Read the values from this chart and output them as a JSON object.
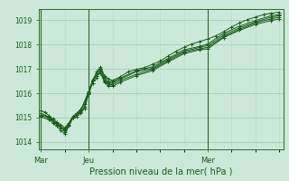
{
  "bg_color": "#cce8d8",
  "grid_color_major": "#a0c8b0",
  "grid_color_minor": "#b8d8c8",
  "line_color": "#1a5c1a",
  "marker_color": "#1a5c1a",
  "ylabel_ticks": [
    1014,
    1015,
    1016,
    1017,
    1018,
    1019
  ],
  "xtick_labels": [
    "Mar",
    "Jeu",
    "Mer"
  ],
  "xtick_positions": [
    0,
    48,
    168
  ],
  "xlabel": "Pression niveau de la mer( hPa )",
  "xlim": [
    -2,
    244
  ],
  "ylim": [
    1013.7,
    1019.45
  ],
  "series": [
    [
      0,
      1015.28,
      4,
      1015.22,
      8,
      1015.08,
      12,
      1014.95,
      16,
      1014.82,
      20,
      1014.7,
      24,
      1014.58,
      28,
      1014.78,
      32,
      1015.05,
      36,
      1015.18,
      40,
      1015.32,
      44,
      1015.55,
      48,
      1016.02,
      52,
      1016.42,
      56,
      1016.88,
      60,
      1017.08,
      64,
      1016.72,
      68,
      1016.58,
      72,
      1016.52,
      80,
      1016.68,
      88,
      1016.88,
      96,
      1016.98,
      104,
      1017.05,
      112,
      1017.18,
      120,
      1017.32,
      128,
      1017.52,
      136,
      1017.72,
      144,
      1017.88,
      152,
      1018.02,
      160,
      1018.12,
      168,
      1018.22,
      176,
      1018.35,
      184,
      1018.52,
      192,
      1018.72,
      200,
      1018.88,
      208,
      1019.02,
      216,
      1019.12,
      224,
      1019.22,
      232,
      1019.28,
      240,
      1019.32
    ],
    [
      0,
      1015.18,
      8,
      1015.02,
      16,
      1014.72,
      24,
      1014.52,
      32,
      1014.98,
      40,
      1015.32,
      48,
      1015.98,
      52,
      1016.42,
      56,
      1016.62,
      60,
      1017.02,
      64,
      1016.62,
      68,
      1016.48,
      72,
      1016.48,
      80,
      1016.62,
      96,
      1016.92,
      112,
      1017.08,
      128,
      1017.42,
      144,
      1017.78,
      160,
      1017.92,
      168,
      1018.02,
      184,
      1018.45,
      200,
      1018.75,
      216,
      1018.98,
      232,
      1019.18,
      240,
      1019.22
    ],
    [
      0,
      1015.12,
      8,
      1015.02,
      16,
      1014.78,
      24,
      1014.48,
      32,
      1014.98,
      40,
      1015.28,
      48,
      1016.08,
      52,
      1016.55,
      56,
      1016.82,
      60,
      1017.02,
      64,
      1016.52,
      68,
      1016.42,
      72,
      1016.42,
      80,
      1016.58,
      96,
      1016.88,
      112,
      1017.02,
      128,
      1017.38,
      144,
      1017.72,
      160,
      1017.88,
      168,
      1017.95,
      184,
      1018.38,
      200,
      1018.68,
      216,
      1018.92,
      232,
      1019.12,
      240,
      1019.18
    ],
    [
      0,
      1015.08,
      8,
      1014.98,
      16,
      1014.72,
      20,
      1014.58,
      24,
      1014.42,
      28,
      1014.72,
      32,
      1015.02,
      36,
      1015.12,
      40,
      1015.22,
      44,
      1015.45,
      48,
      1016.0,
      52,
      1016.52,
      56,
      1016.72,
      60,
      1016.88,
      64,
      1016.48,
      68,
      1016.35,
      72,
      1016.35,
      80,
      1016.52,
      96,
      1016.78,
      112,
      1016.98,
      128,
      1017.32,
      144,
      1017.68,
      160,
      1017.82,
      168,
      1017.88,
      184,
      1018.32,
      200,
      1018.62,
      216,
      1018.88,
      232,
      1019.05,
      240,
      1019.12
    ],
    [
      0,
      1015.02,
      8,
      1014.92,
      12,
      1014.78,
      16,
      1014.65,
      20,
      1014.48,
      24,
      1014.32,
      28,
      1014.65,
      32,
      1014.98,
      36,
      1015.05,
      40,
      1015.18,
      44,
      1015.38,
      48,
      1016.0,
      52,
      1016.52,
      56,
      1016.72,
      60,
      1016.82,
      64,
      1016.45,
      68,
      1016.28,
      72,
      1016.28,
      80,
      1016.45,
      96,
      1016.72,
      112,
      1016.92,
      128,
      1017.28,
      144,
      1017.62,
      160,
      1017.78,
      168,
      1017.82,
      184,
      1018.28,
      200,
      1018.58,
      216,
      1018.82,
      232,
      1018.98,
      240,
      1019.05
    ]
  ]
}
